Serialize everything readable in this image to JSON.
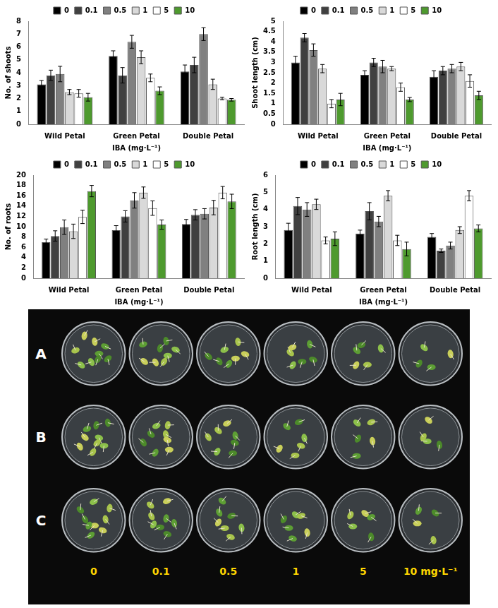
{
  "chart_data": [
    {
      "type": "bar",
      "categories": [
        "Wild Petal",
        "Green Petal",
        "Double Petal"
      ],
      "x_label": "IBA (mg·L⁻¹)",
      "y_label": "No. of shoots",
      "ylim": [
        0,
        8
      ],
      "yticks": [
        0,
        1,
        2,
        3,
        4,
        5,
        6,
        7,
        8
      ],
      "grid": false,
      "legend": "top",
      "series": [
        {
          "name": "0",
          "color": "#000000",
          "values": [
            3.1,
            5.3,
            4.1
          ],
          "errors": [
            0.3,
            0.4,
            0.5
          ]
        },
        {
          "name": "0.1",
          "color": "#404040",
          "values": [
            3.8,
            3.8,
            4.6
          ],
          "errors": [
            0.4,
            0.6,
            0.6
          ]
        },
        {
          "name": "0.5",
          "color": "#808080",
          "values": [
            3.9,
            6.4,
            7.0
          ],
          "errors": [
            0.6,
            0.5,
            0.5
          ]
        },
        {
          "name": "1",
          "color": "#d9d9d9",
          "values": [
            2.5,
            5.2,
            3.1
          ],
          "errors": [
            0.2,
            0.5,
            0.4
          ]
        },
        {
          "name": "5",
          "color": "#ffffff",
          "values": [
            2.4,
            3.6,
            2.0
          ],
          "errors": [
            0.3,
            0.3,
            0.1
          ]
        },
        {
          "name": "10",
          "color": "#4e9a2e",
          "values": [
            2.1,
            2.6,
            1.9
          ],
          "errors": [
            0.3,
            0.3,
            0.1
          ]
        }
      ]
    },
    {
      "type": "bar",
      "categories": [
        "Wild Petal",
        "Green Petal",
        "Double Petal"
      ],
      "x_label": "IBA (mg·L⁻¹)",
      "y_label": "Shoot length (cm)",
      "ylim": [
        0,
        5
      ],
      "yticks": [
        0,
        0.5,
        1,
        1.5,
        2,
        2.5,
        3,
        3.5,
        4,
        4.5,
        5
      ],
      "grid": false,
      "legend": "top",
      "series": [
        {
          "name": "0",
          "color": "#000000",
          "values": [
            3.0,
            2.4,
            2.3
          ],
          "errors": [
            0.3,
            0.2,
            0.3
          ]
        },
        {
          "name": "0.1",
          "color": "#404040",
          "values": [
            4.2,
            3.0,
            2.6
          ],
          "errors": [
            0.2,
            0.2,
            0.2
          ]
        },
        {
          "name": "0.5",
          "color": "#808080",
          "values": [
            3.6,
            2.8,
            2.7
          ],
          "errors": [
            0.3,
            0.3,
            0.2
          ]
        },
        {
          "name": "1",
          "color": "#d9d9d9",
          "values": [
            2.7,
            2.7,
            2.8
          ],
          "errors": [
            0.2,
            0.1,
            0.2
          ]
        },
        {
          "name": "5",
          "color": "#ffffff",
          "values": [
            1.0,
            1.8,
            2.1
          ],
          "errors": [
            0.2,
            0.2,
            0.3
          ]
        },
        {
          "name": "10",
          "color": "#4e9a2e",
          "values": [
            1.2,
            1.2,
            1.4
          ],
          "errors": [
            0.3,
            0.1,
            0.2
          ]
        }
      ]
    },
    {
      "type": "bar",
      "categories": [
        "Wild Petal",
        "Green Petal",
        "Double Petal"
      ],
      "x_label": "IBA (mg·L⁻¹)",
      "y_label": "No. of roots",
      "ylim": [
        0,
        20
      ],
      "yticks": [
        0,
        2,
        4,
        6,
        8,
        10,
        12,
        14,
        16,
        18,
        20
      ],
      "grid": false,
      "legend": "top",
      "series": [
        {
          "name": "0",
          "color": "#000000",
          "values": [
            7.0,
            9.3,
            10.5
          ],
          "errors": [
            0.6,
            0.9,
            0.9
          ]
        },
        {
          "name": "0.1",
          "color": "#404040",
          "values": [
            8.2,
            12.0,
            12.3
          ],
          "errors": [
            1.0,
            1.1,
            1.0
          ]
        },
        {
          "name": "0.5",
          "color": "#808080",
          "values": [
            9.9,
            15.1,
            12.5
          ],
          "errors": [
            1.4,
            1.5,
            1.0
          ]
        },
        {
          "name": "1",
          "color": "#d9d9d9",
          "values": [
            9.1,
            16.6,
            13.7
          ],
          "errors": [
            1.4,
            1.1,
            1.4
          ]
        },
        {
          "name": "5",
          "color": "#ffffff",
          "values": [
            11.9,
            13.6,
            16.6
          ],
          "errors": [
            1.3,
            1.4,
            1.2
          ]
        },
        {
          "name": "10",
          "color": "#4e9a2e",
          "values": [
            16.9,
            10.4,
            14.9
          ],
          "errors": [
            1.1,
            0.9,
            1.4
          ]
        }
      ]
    },
    {
      "type": "bar",
      "categories": [
        "Wild Petal",
        "Green Petal",
        "Double Petal"
      ],
      "x_label": "IBA (mg·L⁻¹)",
      "y_label": "Root length (cm)",
      "ylim": [
        0,
        6
      ],
      "yticks": [
        0,
        1,
        2,
        3,
        4,
        5,
        6
      ],
      "grid": false,
      "legend": "top",
      "series": [
        {
          "name": "0",
          "color": "#000000",
          "values": [
            2.8,
            2.6,
            2.4
          ],
          "errors": [
            0.4,
            0.2,
            0.2
          ]
        },
        {
          "name": "0.1",
          "color": "#404040",
          "values": [
            4.2,
            3.9,
            1.6
          ],
          "errors": [
            0.5,
            0.5,
            0.1
          ]
        },
        {
          "name": "0.5",
          "color": "#808080",
          "values": [
            4.0,
            3.3,
            1.9
          ],
          "errors": [
            0.4,
            0.3,
            0.2
          ]
        },
        {
          "name": "1",
          "color": "#d9d9d9",
          "values": [
            4.3,
            4.8,
            2.8
          ],
          "errors": [
            0.3,
            0.3,
            0.2
          ]
        },
        {
          "name": "5",
          "color": "#ffffff",
          "values": [
            2.2,
            2.2,
            4.8
          ],
          "errors": [
            0.2,
            0.3,
            0.3
          ]
        },
        {
          "name": "10",
          "color": "#4e9a2e",
          "values": [
            2.3,
            1.7,
            2.9
          ],
          "errors": [
            0.4,
            0.4,
            0.2
          ]
        }
      ]
    }
  ],
  "photo": {
    "row_labels": [
      "A",
      "B",
      "C"
    ],
    "column_labels": [
      "0",
      "0.1",
      "0.5",
      "1",
      "5",
      "10 mg·L⁻¹"
    ]
  }
}
